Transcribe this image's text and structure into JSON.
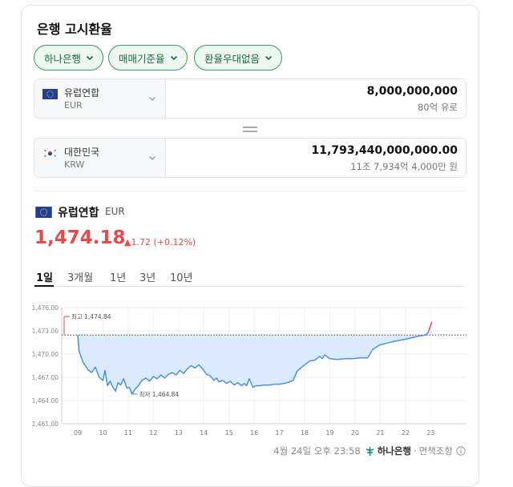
{
  "title": "은행 고시환율",
  "chips": [
    {
      "label": "하나은행"
    },
    {
      "label": "매매기준율"
    },
    {
      "label": "환율우대없음"
    }
  ],
  "from": {
    "name": "유럽연합",
    "code": "EUR",
    "amount": "8,000,000,000",
    "amount_korean": "80억 유로"
  },
  "to": {
    "name": "대한민국",
    "code": "KRW",
    "amount": "11,793,440,000,000.00",
    "amount_korean": "11조 7,934억 4,000만 원"
  },
  "section": {
    "name": "유럽연합",
    "code": "EUR"
  },
  "rate": "1,474.18",
  "change": "1.72 (+0.12%)",
  "tabs": [
    {
      "label": "1일",
      "active": true
    },
    {
      "label": "3개월"
    },
    {
      "label": "1년"
    },
    {
      "label": "3년"
    },
    {
      "label": "10년"
    }
  ],
  "colors": {
    "accent_green": "#2aa25b",
    "up_red": "#e84a4a",
    "line_blue": "#3d8de6",
    "fill_blue": "#dbeafd"
  },
  "chart_data": {
    "type": "area",
    "yticks": [
      "1,476.00",
      "1,473.00",
      "1,470.00",
      "1,467.00",
      "1,464.00",
      "1,461.00"
    ],
    "ylim": [
      1461,
      1476
    ],
    "xticks": [
      "09",
      "10",
      "11",
      "12",
      "13",
      "14",
      "15",
      "16",
      "17",
      "18",
      "19",
      "20",
      "21",
      "22",
      "23"
    ],
    "reference_value": 1472.46,
    "high_label": "최고 1,474.84",
    "low_label": "최저 1,464.84",
    "high_value": 1474.84,
    "low_value": 1464.84,
    "series": [
      {
        "x": 0,
        "y": 1472.46
      },
      {
        "x": 0.05,
        "y": 1470.4
      },
      {
        "x": 0.2,
        "y": 1469.0
      },
      {
        "x": 0.4,
        "y": 1468.0
      },
      {
        "x": 0.55,
        "y": 1467.6
      },
      {
        "x": 0.7,
        "y": 1468.3
      },
      {
        "x": 0.85,
        "y": 1467.0
      },
      {
        "x": 1.0,
        "y": 1466.6
      },
      {
        "x": 1.08,
        "y": 1467.9
      },
      {
        "x": 1.18,
        "y": 1465.9
      },
      {
        "x": 1.28,
        "y": 1466.5
      },
      {
        "x": 1.38,
        "y": 1465.8
      },
      {
        "x": 1.5,
        "y": 1465.2
      },
      {
        "x": 1.6,
        "y": 1466.3
      },
      {
        "x": 1.7,
        "y": 1466.0
      },
      {
        "x": 1.82,
        "y": 1466.8
      },
      {
        "x": 1.95,
        "y": 1465.6
      },
      {
        "x": 2.05,
        "y": 1465.7
      },
      {
        "x": 2.15,
        "y": 1464.84
      },
      {
        "x": 2.28,
        "y": 1465.5
      },
      {
        "x": 2.4,
        "y": 1465.9
      },
      {
        "x": 2.55,
        "y": 1466.6
      },
      {
        "x": 2.7,
        "y": 1466.9
      },
      {
        "x": 2.85,
        "y": 1466.5
      },
      {
        "x": 3.0,
        "y": 1467.1
      },
      {
        "x": 3.15,
        "y": 1466.8
      },
      {
        "x": 3.3,
        "y": 1467.3
      },
      {
        "x": 3.45,
        "y": 1466.9
      },
      {
        "x": 3.6,
        "y": 1467.4
      },
      {
        "x": 3.75,
        "y": 1467.6
      },
      {
        "x": 3.9,
        "y": 1467.3
      },
      {
        "x": 4.05,
        "y": 1467.9
      },
      {
        "x": 4.2,
        "y": 1467.5
      },
      {
        "x": 4.35,
        "y": 1468.1
      },
      {
        "x": 4.5,
        "y": 1468.5
      },
      {
        "x": 4.65,
        "y": 1468.2
      },
      {
        "x": 4.8,
        "y": 1468.6
      },
      {
        "x": 4.95,
        "y": 1468.1
      },
      {
        "x": 5.1,
        "y": 1467.4
      },
      {
        "x": 5.25,
        "y": 1467.2
      },
      {
        "x": 5.4,
        "y": 1466.6
      },
      {
        "x": 5.5,
        "y": 1466.9
      },
      {
        "x": 5.6,
        "y": 1466.4
      },
      {
        "x": 5.75,
        "y": 1466.6
      },
      {
        "x": 5.9,
        "y": 1466.2
      },
      {
        "x": 6.05,
        "y": 1466.5
      },
      {
        "x": 6.2,
        "y": 1466.0
      },
      {
        "x": 6.35,
        "y": 1466.3
      },
      {
        "x": 6.5,
        "y": 1465.9
      },
      {
        "x": 6.6,
        "y": 1466.2
      },
      {
        "x": 6.7,
        "y": 1465.9
      },
      {
        "x": 6.8,
        "y": 1466.8
      },
      {
        "x": 6.95,
        "y": 1465.7
      },
      {
        "x": 7.05,
        "y": 1465.9
      },
      {
        "x": 7.2,
        "y": 1465.9
      },
      {
        "x": 7.4,
        "y": 1466.0
      },
      {
        "x": 7.6,
        "y": 1466.0
      },
      {
        "x": 7.8,
        "y": 1466.1
      },
      {
        "x": 8.0,
        "y": 1466.1
      },
      {
        "x": 8.2,
        "y": 1466.2
      },
      {
        "x": 8.4,
        "y": 1466.4
      },
      {
        "x": 8.55,
        "y": 1466.6
      },
      {
        "x": 8.7,
        "y": 1467.8
      },
      {
        "x": 8.85,
        "y": 1468.2
      },
      {
        "x": 9.0,
        "y": 1468.6
      },
      {
        "x": 9.2,
        "y": 1469.1
      },
      {
        "x": 9.4,
        "y": 1469.2
      },
      {
        "x": 9.6,
        "y": 1469.7
      },
      {
        "x": 9.7,
        "y": 1469.4
      },
      {
        "x": 9.8,
        "y": 1469.9
      },
      {
        "x": 10.0,
        "y": 1469.4
      },
      {
        "x": 10.3,
        "y": 1469.3
      },
      {
        "x": 10.6,
        "y": 1469.4
      },
      {
        "x": 10.9,
        "y": 1469.4
      },
      {
        "x": 11.2,
        "y": 1469.5
      },
      {
        "x": 11.5,
        "y": 1469.5
      },
      {
        "x": 11.7,
        "y": 1470.6
      },
      {
        "x": 12.0,
        "y": 1471.2
      },
      {
        "x": 12.5,
        "y": 1471.6
      },
      {
        "x": 13.0,
        "y": 1471.9
      },
      {
        "x": 13.5,
        "y": 1472.3
      },
      {
        "x": 13.8,
        "y": 1472.46
      },
      {
        "x": 13.9,
        "y": 1472.8
      },
      {
        "x": 14.05,
        "y": 1474.18
      }
    ]
  },
  "footer": {
    "timestamp": "4월 24일 오후 23:58",
    "bank": "하나은행",
    "disclaimer": "면책조항"
  }
}
